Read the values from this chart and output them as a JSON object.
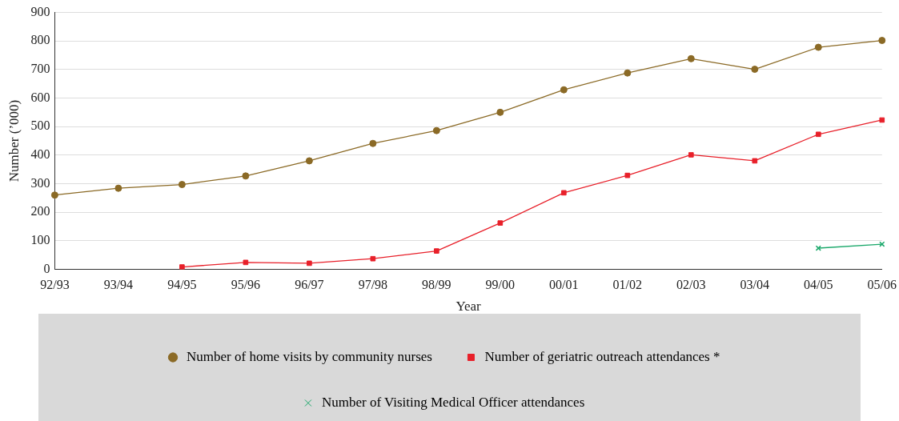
{
  "chart_data": {
    "type": "line",
    "xlabel": "Year",
    "ylabel": "Number (’000)",
    "categories": [
      "92/93",
      "93/94",
      "94/95",
      "95/96",
      "96/97",
      "97/98",
      "98/99",
      "99/00",
      "00/01",
      "01/02",
      "02/03",
      "03/04",
      "04/05",
      "05/06"
    ],
    "series": [
      {
        "name": "Number of home visits by community nurses",
        "color": "#8b6a26",
        "marker": "circle",
        "values": [
          260,
          284,
          297,
          327,
          380,
          441,
          486,
          550,
          629,
          688,
          738,
          701,
          778,
          802
        ]
      },
      {
        "name": "Number of geriatric outreach attendances *",
        "color": "#e8202a",
        "marker": "square",
        "values": [
          null,
          null,
          8,
          24,
          21,
          37,
          64,
          162,
          268,
          329,
          401,
          380,
          473,
          523
        ]
      },
      {
        "name": "Number of Visiting Medical Officer attendances",
        "color": "#1aa86a",
        "marker": "cross",
        "values": [
          null,
          null,
          null,
          null,
          null,
          null,
          null,
          null,
          null,
          null,
          null,
          null,
          74,
          88
        ]
      }
    ],
    "ylim": [
      0,
      900
    ],
    "yticks": [
      0,
      100,
      200,
      300,
      400,
      500,
      600,
      700,
      800,
      900
    ],
    "grid": "y",
    "legend": "bottom"
  }
}
